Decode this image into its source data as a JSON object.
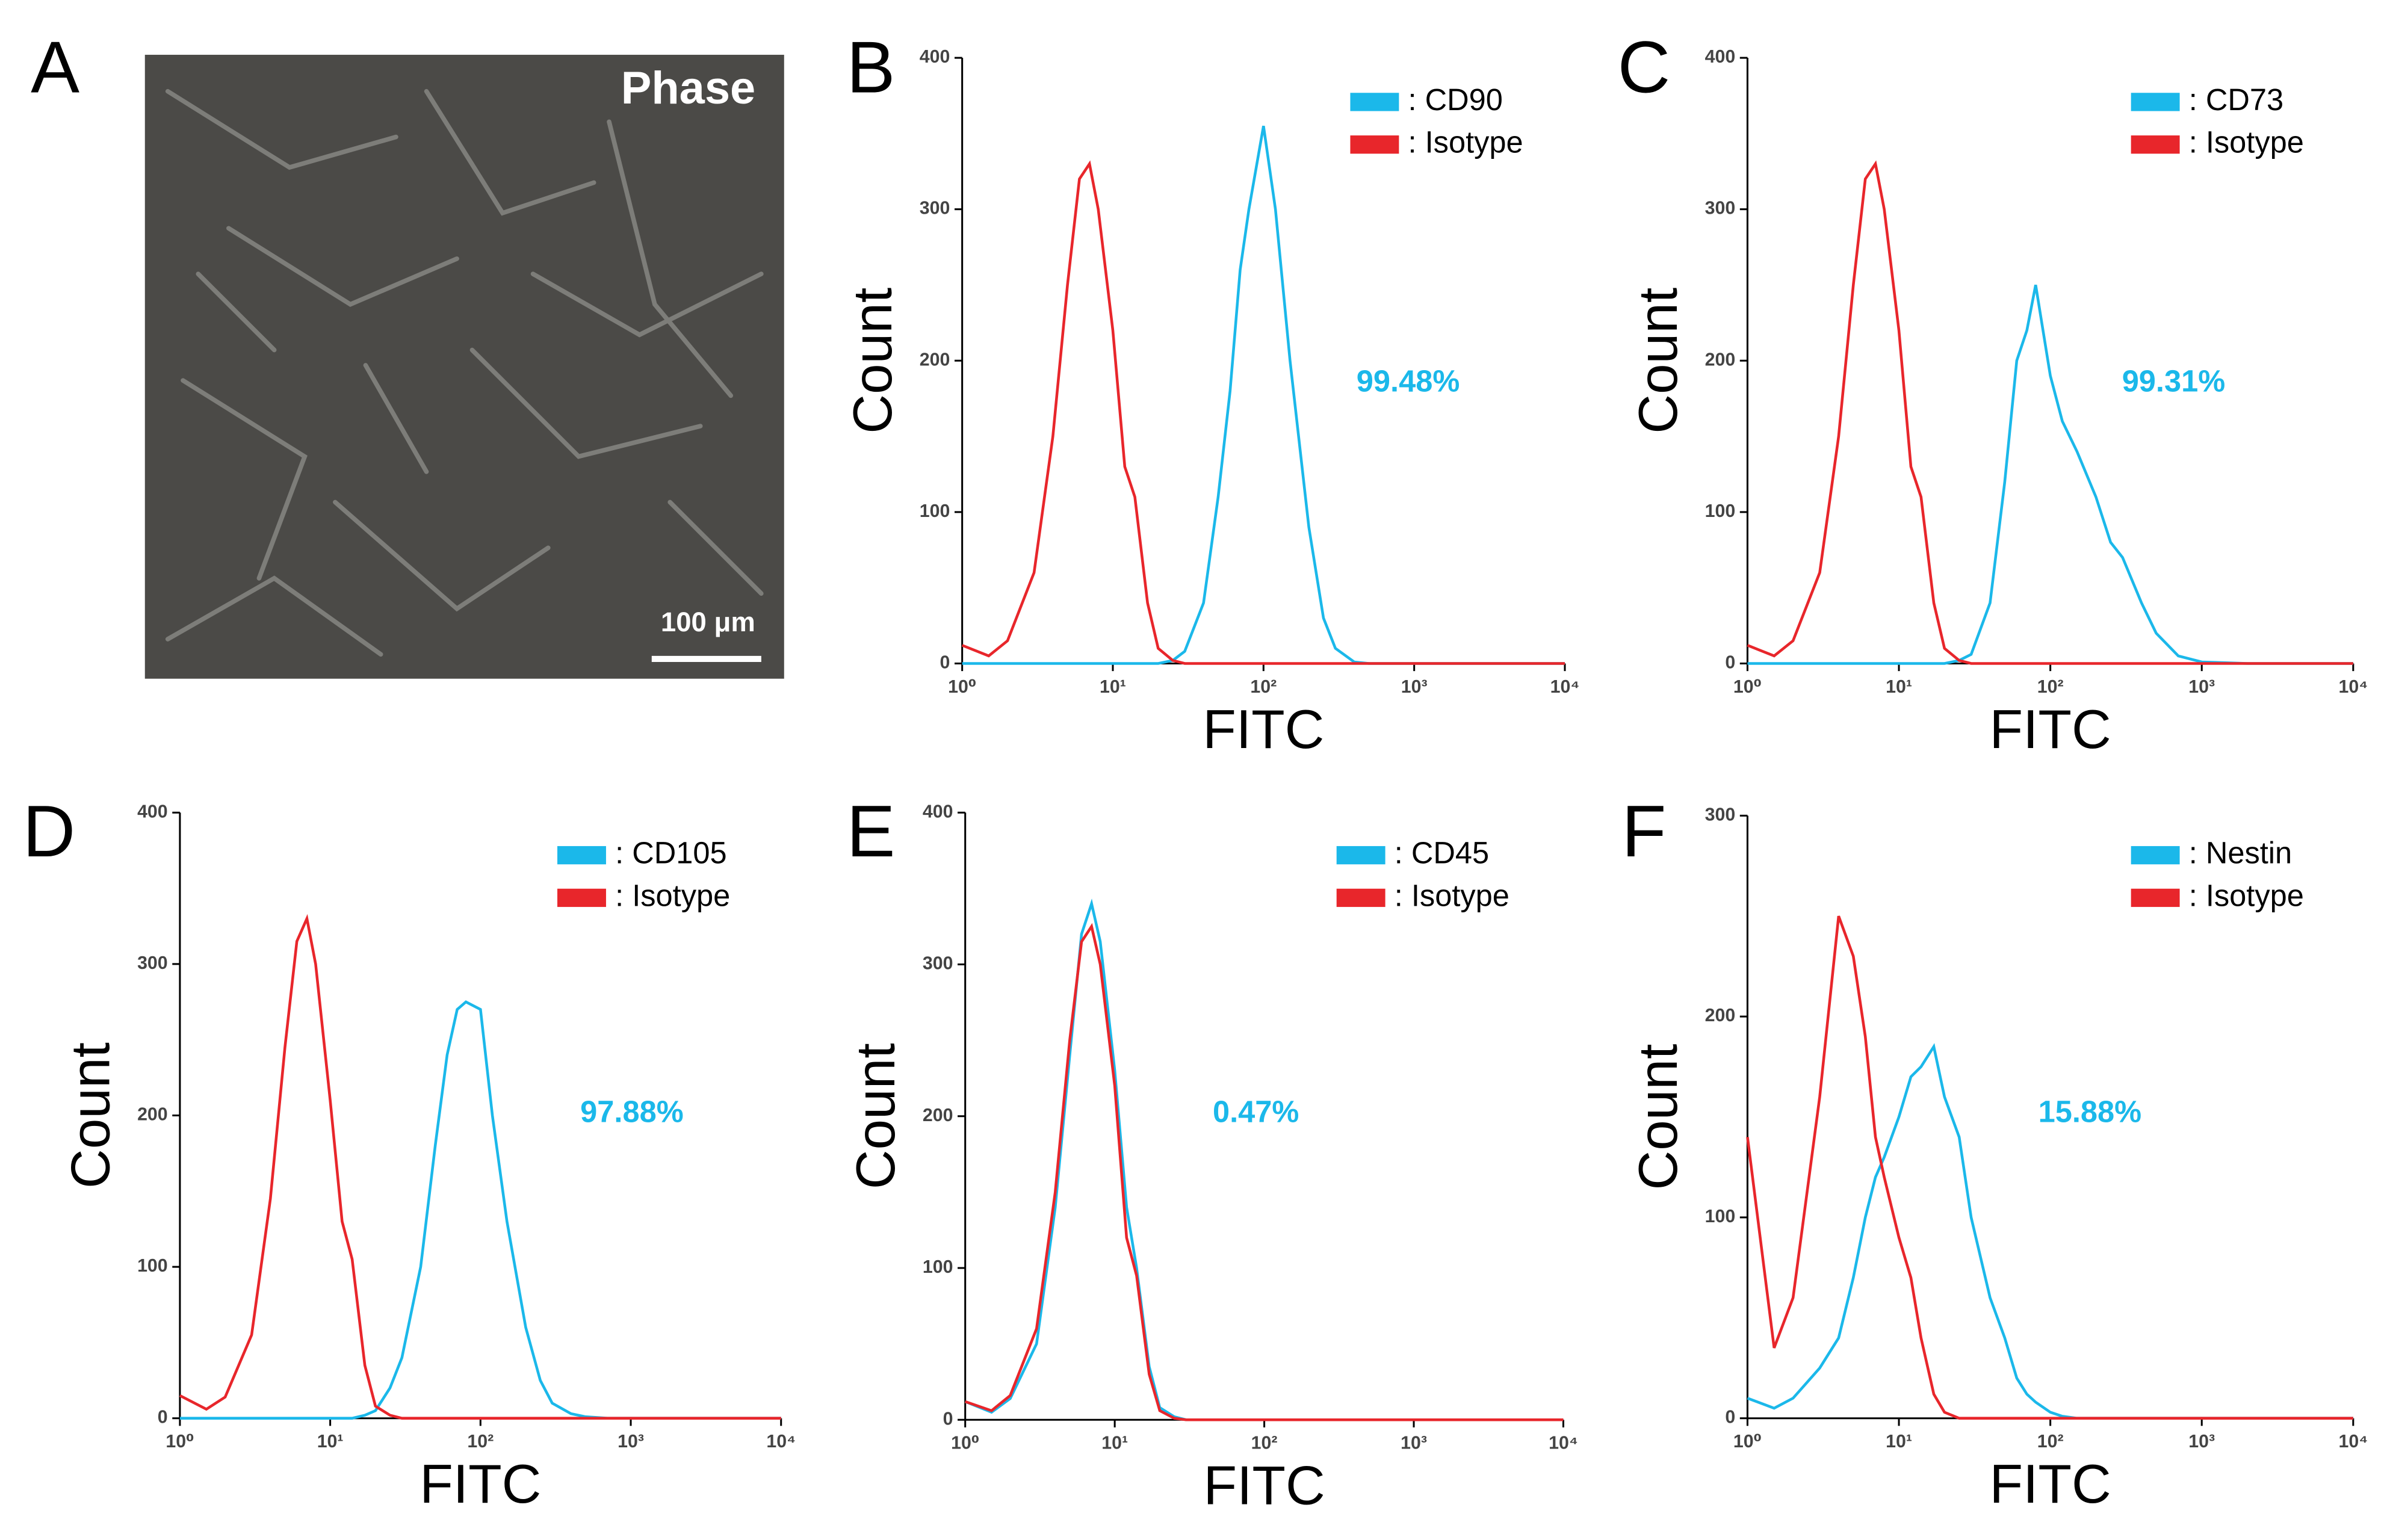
{
  "image_panel": {
    "label": "A",
    "title": "Phase",
    "scale_bar": "100 μm"
  },
  "chart_data": [
    {
      "type": "line",
      "panel_label": "B",
      "log_x": true,
      "x_label": "FITC",
      "y_label": "Count",
      "annotation": "99.48%",
      "xlim": [
        1,
        10000
      ],
      "xticks": [
        {
          "value": 1,
          "label": "10⁰"
        },
        {
          "value": 10,
          "label": "10¹"
        },
        {
          "value": 100,
          "label": "10²"
        },
        {
          "value": 1000,
          "label": "10³"
        },
        {
          "value": 10000,
          "label": "10⁴"
        }
      ],
      "ylim": [
        0,
        400
      ],
      "yticks": [
        0,
        100,
        200,
        300,
        400
      ],
      "x": [
        1,
        1.5,
        2,
        3,
        4,
        5,
        6,
        7,
        8,
        10,
        12,
        14,
        17,
        20,
        25,
        30,
        40,
        50,
        60,
        70,
        80,
        100,
        120,
        150,
        200,
        250,
        300,
        400,
        500,
        700,
        1000,
        2000,
        10000
      ],
      "series": [
        {
          "name": ": CD90",
          "color": "#1bb8ea",
          "values": [
            0,
            0,
            0,
            0,
            0,
            0,
            0,
            0,
            0,
            0,
            0,
            0,
            0,
            0,
            2,
            8,
            40,
            110,
            180,
            260,
            300,
            355,
            300,
            200,
            90,
            30,
            10,
            1,
            0,
            0,
            0,
            0,
            0
          ]
        },
        {
          "name": ": Isotype",
          "color": "#e8262b",
          "values": [
            12,
            5,
            15,
            60,
            150,
            250,
            320,
            330,
            300,
            220,
            130,
            110,
            40,
            10,
            2,
            0,
            0,
            0,
            0,
            0,
            0,
            0,
            0,
            0,
            0,
            0,
            0,
            0,
            0,
            0,
            0,
            0,
            0
          ]
        }
      ]
    },
    {
      "type": "line",
      "panel_label": "C",
      "log_x": true,
      "x_label": "FITC",
      "y_label": "Count",
      "annotation": "99.31%",
      "xlim": [
        1,
        10000
      ],
      "xticks": [
        {
          "value": 1,
          "label": "10⁰"
        },
        {
          "value": 10,
          "label": "10¹"
        },
        {
          "value": 100,
          "label": "10²"
        },
        {
          "value": 1000,
          "label": "10³"
        },
        {
          "value": 10000,
          "label": "10⁴"
        }
      ],
      "ylim": [
        0,
        400
      ],
      "yticks": [
        0,
        100,
        200,
        300,
        400
      ],
      "x": [
        1,
        1.5,
        2,
        3,
        4,
        5,
        6,
        7,
        8,
        10,
        12,
        14,
        17,
        20,
        25,
        30,
        40,
        50,
        60,
        70,
        80,
        100,
        120,
        150,
        200,
        250,
        300,
        400,
        500,
        700,
        1000,
        2000,
        10000
      ],
      "series": [
        {
          "name": ": CD73",
          "color": "#1bb8ea",
          "values": [
            0,
            0,
            0,
            0,
            0,
            0,
            0,
            0,
            0,
            0,
            0,
            0,
            0,
            0,
            2,
            6,
            40,
            120,
            200,
            220,
            250,
            190,
            160,
            140,
            110,
            80,
            70,
            40,
            20,
            5,
            1,
            0,
            0
          ]
        },
        {
          "name": ": Isotype",
          "color": "#e8262b",
          "values": [
            12,
            5,
            15,
            60,
            150,
            250,
            320,
            330,
            300,
            220,
            130,
            110,
            40,
            10,
            2,
            0,
            0,
            0,
            0,
            0,
            0,
            0,
            0,
            0,
            0,
            0,
            0,
            0,
            0,
            0,
            0,
            0,
            0
          ]
        }
      ]
    },
    {
      "type": "line",
      "panel_label": "D",
      "log_x": true,
      "x_label": "FITC",
      "y_label": "Count",
      "annotation": "97.88%",
      "xlim": [
        1,
        10000
      ],
      "xticks": [
        {
          "value": 1,
          "label": "10⁰"
        },
        {
          "value": 10,
          "label": "10¹"
        },
        {
          "value": 100,
          "label": "10²"
        },
        {
          "value": 1000,
          "label": "10³"
        },
        {
          "value": 10000,
          "label": "10⁴"
        }
      ],
      "ylim": [
        0,
        400
      ],
      "yticks": [
        0,
        100,
        200,
        300,
        400
      ],
      "x": [
        1,
        1.5,
        2,
        3,
        4,
        5,
        6,
        7,
        8,
        10,
        12,
        14,
        17,
        20,
        25,
        30,
        40,
        50,
        60,
        70,
        80,
        100,
        120,
        150,
        200,
        250,
        300,
        400,
        500,
        700,
        1000,
        2000,
        10000
      ],
      "series": [
        {
          "name": ": CD105",
          "color": "#1bb8ea",
          "values": [
            0,
            0,
            0,
            0,
            0,
            0,
            0,
            0,
            0,
            0,
            0,
            0,
            2,
            5,
            20,
            40,
            100,
            180,
            240,
            270,
            275,
            270,
            200,
            130,
            60,
            25,
            10,
            3,
            1,
            0,
            0,
            0,
            0
          ]
        },
        {
          "name": ": Isotype",
          "color": "#e8262b",
          "values": [
            15,
            6,
            14,
            55,
            145,
            245,
            315,
            330,
            300,
            210,
            130,
            105,
            35,
            8,
            2,
            0,
            0,
            0,
            0,
            0,
            0,
            0,
            0,
            0,
            0,
            0,
            0,
            0,
            0,
            0,
            0,
            0,
            0
          ]
        }
      ]
    },
    {
      "type": "line",
      "panel_label": "E",
      "log_x": true,
      "x_label": "FITC",
      "y_label": "Count",
      "annotation": "0.47%",
      "xlim": [
        1,
        10000
      ],
      "xticks": [
        {
          "value": 1,
          "label": "10⁰"
        },
        {
          "value": 10,
          "label": "10¹"
        },
        {
          "value": 100,
          "label": "10²"
        },
        {
          "value": 1000,
          "label": "10³"
        },
        {
          "value": 10000,
          "label": "10⁴"
        }
      ],
      "ylim": [
        0,
        400
      ],
      "yticks": [
        0,
        100,
        200,
        300,
        400
      ],
      "x": [
        1,
        1.5,
        2,
        3,
        4,
        5,
        6,
        7,
        8,
        10,
        12,
        14,
        17,
        20,
        25,
        30,
        40,
        50,
        60,
        70,
        80,
        100,
        120,
        150,
        200,
        250,
        300,
        400,
        500,
        700,
        1000,
        2000,
        10000
      ],
      "series": [
        {
          "name": ": CD45",
          "color": "#1bb8ea",
          "values": [
            12,
            5,
            14,
            50,
            140,
            240,
            320,
            340,
            315,
            230,
            140,
            100,
            35,
            8,
            2,
            0,
            0,
            0,
            0,
            0,
            0,
            0,
            0,
            0,
            0,
            0,
            0,
            0,
            0,
            0,
            0,
            0,
            0
          ]
        },
        {
          "name": ": Isotype",
          "color": "#e8262b",
          "values": [
            12,
            6,
            16,
            60,
            150,
            250,
            315,
            325,
            300,
            220,
            120,
            95,
            30,
            6,
            1,
            0,
            0,
            0,
            0,
            0,
            0,
            0,
            0,
            0,
            0,
            0,
            0,
            0,
            0,
            0,
            0,
            0,
            0
          ]
        }
      ]
    },
    {
      "type": "line",
      "panel_label": "F",
      "log_x": true,
      "x_label": "FITC",
      "y_label": "Count",
      "annotation": "15.88%",
      "xlim": [
        1,
        10000
      ],
      "xticks": [
        {
          "value": 1,
          "label": "10⁰"
        },
        {
          "value": 10,
          "label": "10¹"
        },
        {
          "value": 100,
          "label": "10²"
        },
        {
          "value": 1000,
          "label": "10³"
        },
        {
          "value": 10000,
          "label": "10⁴"
        }
      ],
      "ylim": [
        0,
        300
      ],
      "yticks": [
        0,
        100,
        200,
        300
      ],
      "x": [
        1,
        1.5,
        2,
        3,
        4,
        5,
        6,
        7,
        8,
        10,
        12,
        14,
        17,
        20,
        25,
        30,
        40,
        50,
        60,
        70,
        80,
        100,
        120,
        150,
        200,
        250,
        300,
        400,
        500,
        700,
        1000,
        2000,
        10000
      ],
      "series": [
        {
          "name": ": Nestin",
          "color": "#1bb8ea",
          "values": [
            10,
            5,
            10,
            25,
            40,
            70,
            100,
            120,
            130,
            150,
            170,
            175,
            185,
            160,
            140,
            100,
            60,
            40,
            20,
            12,
            8,
            3,
            1,
            0,
            0,
            0,
            0,
            0,
            0,
            0,
            0,
            0,
            0
          ]
        },
        {
          "name": ": Isotype",
          "color": "#e8262b",
          "values": [
            140,
            35,
            60,
            160,
            250,
            230,
            190,
            140,
            120,
            90,
            70,
            40,
            12,
            3,
            0,
            0,
            0,
            0,
            0,
            0,
            0,
            0,
            0,
            0,
            0,
            0,
            0,
            0,
            0,
            0,
            0,
            0,
            0
          ]
        }
      ]
    }
  ]
}
